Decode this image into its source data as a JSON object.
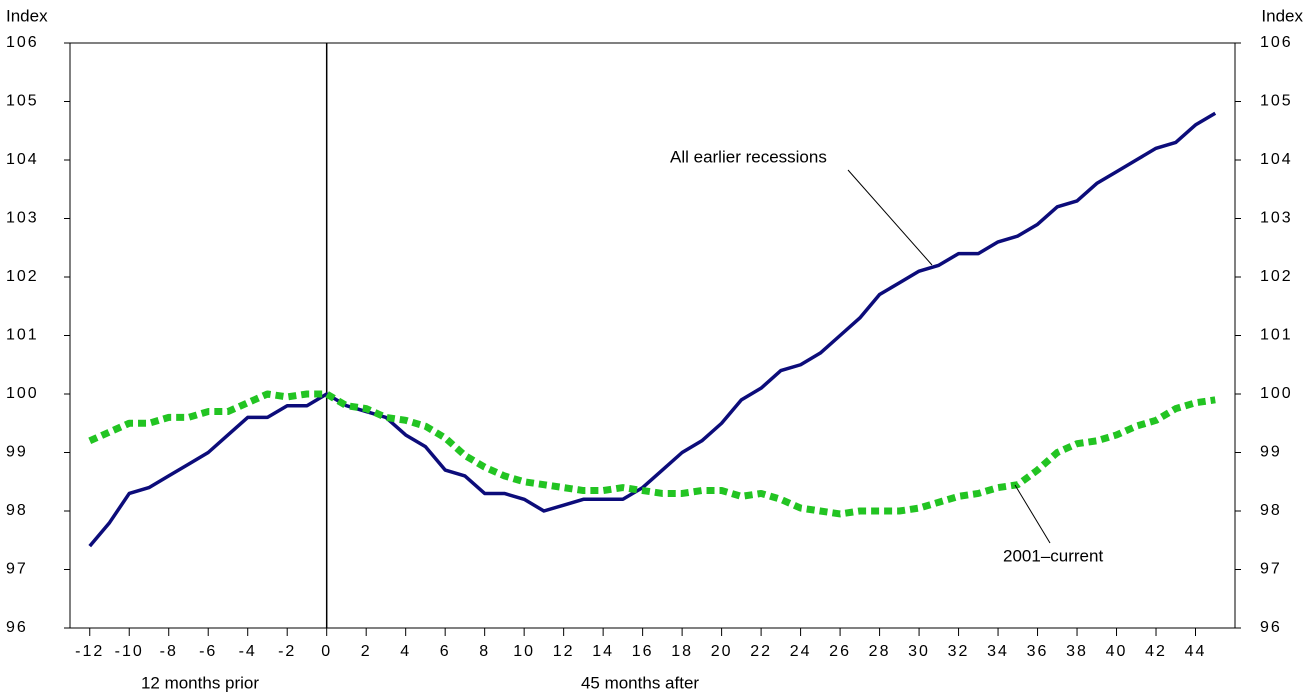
{
  "chart_data": {
    "type": "line",
    "y_label": "Index",
    "y2_label": "Index",
    "x_note_left": "12 months prior",
    "x_note_right": "45 months after",
    "x": [
      -12,
      -11,
      -10,
      -9,
      -8,
      -7,
      -6,
      -5,
      -4,
      -3,
      -2,
      -1,
      0,
      1,
      2,
      3,
      4,
      5,
      6,
      7,
      8,
      9,
      10,
      11,
      12,
      13,
      14,
      15,
      16,
      17,
      18,
      19,
      20,
      21,
      22,
      23,
      24,
      25,
      26,
      27,
      28,
      29,
      30,
      31,
      32,
      33,
      34,
      35,
      36,
      37,
      38,
      39,
      40,
      41,
      42,
      43,
      44,
      45
    ],
    "series": [
      {
        "name": "All earlier recessions",
        "color": "#0c0c7a",
        "dash": false,
        "values": [
          97.4,
          97.8,
          98.3,
          98.4,
          98.6,
          98.8,
          99.0,
          99.3,
          99.6,
          99.6,
          99.8,
          99.8,
          100.0,
          99.8,
          99.7,
          99.6,
          99.3,
          99.1,
          98.7,
          98.6,
          98.3,
          98.3,
          98.2,
          98.0,
          98.1,
          98.2,
          98.2,
          98.2,
          98.4,
          98.7,
          99.0,
          99.2,
          99.5,
          99.9,
          100.1,
          100.4,
          100.5,
          100.7,
          101.0,
          101.3,
          101.7,
          101.9,
          102.1,
          102.2,
          102.4,
          102.4,
          102.6,
          102.7,
          102.9,
          103.2,
          103.3,
          103.6,
          103.8,
          104.0,
          104.2,
          104.3,
          104.6,
          104.8
        ]
      },
      {
        "name": "2001–current",
        "color": "#22c422",
        "dash": true,
        "values": [
          99.2,
          99.35,
          99.5,
          99.5,
          99.6,
          99.6,
          99.7,
          99.7,
          99.85,
          100.0,
          99.95,
          100.0,
          100.0,
          99.8,
          99.75,
          99.6,
          99.55,
          99.45,
          99.25,
          98.95,
          98.75,
          98.6,
          98.5,
          98.45,
          98.4,
          98.35,
          98.35,
          98.4,
          98.35,
          98.3,
          98.3,
          98.35,
          98.35,
          98.25,
          98.3,
          98.2,
          98.05,
          98.0,
          97.95,
          98.0,
          98.0,
          98.0,
          98.05,
          98.15,
          98.25,
          98.3,
          98.4,
          98.45,
          98.7,
          99.0,
          99.15,
          99.2,
          99.3,
          99.45,
          99.55,
          99.75,
          99.85,
          99.9
        ]
      }
    ],
    "xlim": [
      -13,
      46
    ],
    "xticks": [
      -12,
      -10,
      -8,
      -6,
      -4,
      -2,
      0,
      2,
      4,
      6,
      8,
      10,
      12,
      14,
      16,
      18,
      20,
      22,
      24,
      26,
      28,
      30,
      32,
      34,
      36,
      38,
      40,
      42,
      44
    ],
    "vline_x": 0,
    "ylim": [
      96,
      106
    ],
    "yticks": [
      96,
      97,
      98,
      99,
      100,
      101,
      102,
      103,
      104,
      105,
      106
    ],
    "y2lim": [
      96,
      106
    ],
    "y2ticks": [
      96,
      97,
      98,
      99,
      100,
      101,
      102,
      103,
      104,
      105,
      106
    ]
  }
}
